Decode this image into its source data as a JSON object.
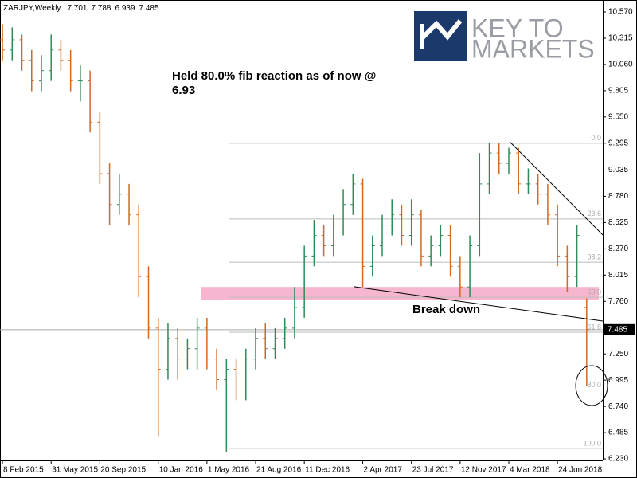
{
  "chart_data": {
    "type": "ohlc",
    "title": "ZARJPY,Weekly",
    "open": [
      10.3,
      10.2,
      10.3,
      10.1,
      9.9,
      10.0,
      10.2,
      10.1,
      9.9,
      9.9,
      9.5,
      9.0,
      8.7,
      8.8,
      8.6,
      8.0,
      7.5,
      7.1,
      7.4,
      7.2,
      7.3,
      7.5,
      7.2,
      7.0,
      7.1,
      6.9,
      7.2,
      7.4,
      7.3,
      7.4,
      7.5,
      7.7,
      8.2,
      8.4,
      8.3,
      8.5,
      8.7,
      8.9,
      8.1,
      8.3,
      8.5,
      8.6,
      8.4,
      8.6,
      8.2,
      8.3,
      8.4,
      8.1,
      7.9,
      8.3,
      8.9,
      9.2,
      9.1,
      9.2,
      8.9,
      8.9,
      8.8,
      8.6,
      8.2,
      8.0,
      7.701
    ],
    "high": [
      10.45,
      10.42,
      10.35,
      10.2,
      10.15,
      10.35,
      10.3,
      10.2,
      10.05,
      10.0,
      9.6,
      9.1,
      9.0,
      8.9,
      8.7,
      8.1,
      7.6,
      7.55,
      7.5,
      7.4,
      7.6,
      7.6,
      7.3,
      7.2,
      7.2,
      7.3,
      7.5,
      7.55,
      7.5,
      7.6,
      7.9,
      8.3,
      8.55,
      8.5,
      8.6,
      8.85,
      9.0,
      8.95,
      8.4,
      8.6,
      8.75,
      8.7,
      8.75,
      8.65,
      8.4,
      8.5,
      8.5,
      8.2,
      8.4,
      9.2,
      9.3,
      9.3,
      9.25,
      9.25,
      9.05,
      9.0,
      8.9,
      8.7,
      8.3,
      8.5,
      7.788
    ],
    "low": [
      10.1,
      10.1,
      10.0,
      9.8,
      9.8,
      9.9,
      10.0,
      9.8,
      9.7,
      9.4,
      8.9,
      8.5,
      8.6,
      8.5,
      7.8,
      7.4,
      6.45,
      7.0,
      7.0,
      7.1,
      7.1,
      7.1,
      6.9,
      6.3,
      6.8,
      6.8,
      7.1,
      7.2,
      7.2,
      7.3,
      7.4,
      7.6,
      8.1,
      8.2,
      8.2,
      8.4,
      8.6,
      7.9,
      8.0,
      8.2,
      8.4,
      8.3,
      8.3,
      8.1,
      8.1,
      8.2,
      8.0,
      7.8,
      7.8,
      8.2,
      8.8,
      9.0,
      9.0,
      8.8,
      8.8,
      8.7,
      8.5,
      8.1,
      7.85,
      7.9,
      6.939
    ],
    "close": [
      10.2,
      10.3,
      10.1,
      9.9,
      10.0,
      10.2,
      10.1,
      9.9,
      9.9,
      9.5,
      9.0,
      8.7,
      8.8,
      8.6,
      8.0,
      7.5,
      7.1,
      7.4,
      7.2,
      7.3,
      7.5,
      7.2,
      7.0,
      7.1,
      6.9,
      7.2,
      7.4,
      7.3,
      7.4,
      7.5,
      7.7,
      8.2,
      8.4,
      8.3,
      8.5,
      8.7,
      8.9,
      8.1,
      8.3,
      8.5,
      8.6,
      8.4,
      8.6,
      8.2,
      8.3,
      8.4,
      8.1,
      7.9,
      8.3,
      8.9,
      9.2,
      9.1,
      9.2,
      8.9,
      8.9,
      8.8,
      8.6,
      8.2,
      8.0,
      8.4,
      7.485
    ],
    "up_color": "#2e8b57",
    "down_color": "#d2691e",
    "xlim": [
      -0.25,
      61.65
    ],
    "xticks": [
      {
        "value": 0,
        "label": "8 Feb 2015"
      },
      {
        "value": 5,
        "label": "31 May 2015"
      },
      {
        "value": 10,
        "label": "20 Sep 2015"
      },
      {
        "value": 16,
        "label": "10 Jan 2016"
      },
      {
        "value": 21,
        "label": "1 May 2016"
      },
      {
        "value": 26,
        "label": "21 Aug 2016"
      },
      {
        "value": 31,
        "label": "11 Dec 2016"
      },
      {
        "value": 37,
        "label": "2 Apr 2017"
      },
      {
        "value": 42,
        "label": "23 Jul 2017"
      },
      {
        "value": 47,
        "label": "12 Nov 2017"
      },
      {
        "value": 52,
        "label": "4 Mar 2018"
      },
      {
        "value": 57,
        "label": "24 Jun 2018"
      }
    ],
    "ylim": [
      6.215,
      10.686
    ],
    "yticks": [
      {
        "value": 10.57,
        "label": "10.570"
      },
      {
        "value": 10.315,
        "label": "10.315"
      },
      {
        "value": 10.06,
        "label": "10.060"
      },
      {
        "value": 9.805,
        "label": "9.805"
      },
      {
        "value": 9.55,
        "label": "9.550"
      },
      {
        "value": 9.295,
        "label": "9.295"
      },
      {
        "value": 9.035,
        "label": "9.035"
      },
      {
        "value": 8.78,
        "label": "8.780"
      },
      {
        "value": 8.525,
        "label": "8.525"
      },
      {
        "value": 8.27,
        "label": "8.270"
      },
      {
        "value": 8.015,
        "label": "8.015"
      },
      {
        "value": 7.76,
        "label": "7.760"
      },
      {
        "value": 7.505,
        "label": "7.505"
      },
      {
        "value": 7.25,
        "label": "7.250"
      },
      {
        "value": 6.995,
        "label": "6.995"
      },
      {
        "value": 6.74,
        "label": "6.740"
      },
      {
        "value": 6.485,
        "label": "6.485"
      },
      {
        "value": 6.23,
        "label": "6.230"
      }
    ],
    "fib_levels": [
      {
        "value": 9.295,
        "label": "0.0"
      },
      {
        "value": 8.56,
        "label": "23.6"
      },
      {
        "value": 8.14,
        "label": "38.2"
      },
      {
        "value": 7.8,
        "label": "50.0"
      },
      {
        "value": 7.46,
        "label": "61.8"
      },
      {
        "value": 6.9,
        "label": "80.0"
      },
      {
        "value": 6.33,
        "label": "100.0"
      }
    ],
    "fib_start": 23.3,
    "zone": [
      7.77,
      7.9
    ],
    "trendlines": [
      {
        "x": [
          36.1,
          61.65
        ],
        "y": [
          7.902,
          7.569
        ]
      },
      {
        "x": [
          52.1,
          61.65
        ],
        "y": [
          9.309,
          8.405
        ]
      }
    ],
    "annotations": [
      "Held 80.0% fib reaction as of now @",
      "6.93",
      "Break down"
    ],
    "logo": [
      "KEY TO",
      "MARKETS"
    ]
  }
}
